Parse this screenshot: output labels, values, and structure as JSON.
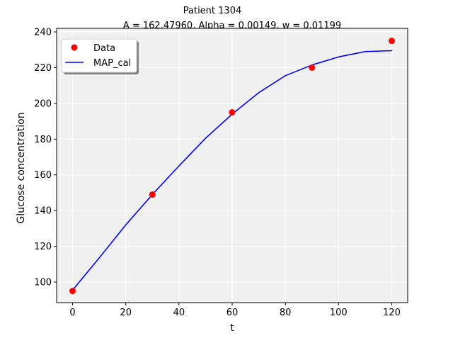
{
  "chart_data": {
    "type": "scatter",
    "title": "Patient 1304",
    "subtitle": "A = 162.47960, Alpha = 0.00149, w = 0.01199",
    "xlabel": "t",
    "ylabel": "Glucose concentration",
    "xlim": [
      -6,
      126
    ],
    "ylim": [
      88.5,
      242
    ],
    "xticks": [
      0,
      20,
      40,
      60,
      80,
      100,
      120
    ],
    "yticks": [
      100,
      120,
      140,
      160,
      180,
      200,
      220,
      240
    ],
    "grid": true,
    "legend": "top-left",
    "series": [
      {
        "name": "Data",
        "kind": "scatter",
        "color": "#ff0000",
        "x": [
          0,
          30,
          60,
          90,
          120
        ],
        "y": [
          95,
          149,
          195,
          220,
          235
        ]
      },
      {
        "name": "MAP_cal",
        "kind": "line",
        "color": "#0000ff",
        "x": [
          0,
          10,
          20,
          30,
          40,
          50,
          60,
          70,
          80,
          90,
          100,
          110,
          120
        ],
        "y": [
          95.5,
          113.5,
          132,
          149,
          165,
          180.5,
          194,
          206,
          215.5,
          221.5,
          226,
          229,
          229.5
        ]
      }
    ]
  }
}
